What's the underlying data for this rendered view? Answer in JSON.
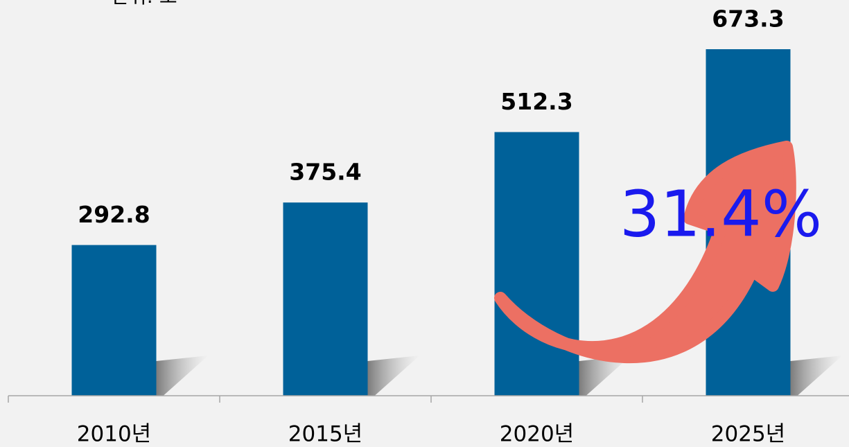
{
  "chart_data": {
    "type": "bar",
    "unit_note": "단위: 조",
    "categories": [
      "2010년",
      "2015년",
      "2020년",
      "2025년"
    ],
    "values": [
      292.8,
      375.4,
      512.3,
      673.3
    ],
    "color": "#006199",
    "annotation": "31.4%"
  }
}
